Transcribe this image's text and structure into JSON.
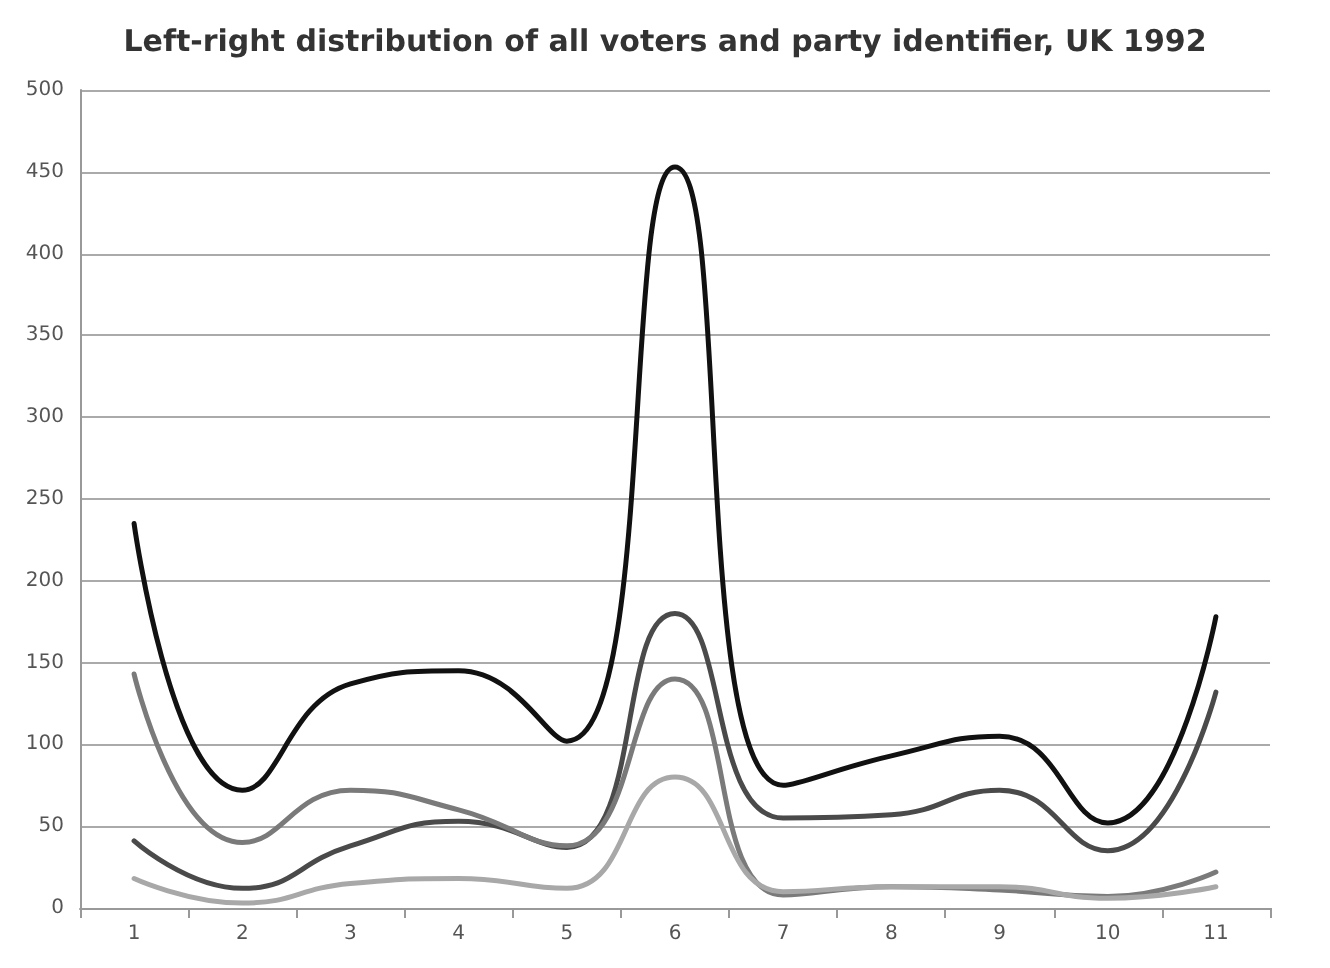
{
  "chart_data": {
    "type": "line",
    "title": "Left-right distribution of all voters and party identifier, UK 1992",
    "categories": [
      "1",
      "2",
      "3",
      "4",
      "5",
      "6",
      "7",
      "8",
      "9",
      "10",
      "11"
    ],
    "series": [
      {
        "color": "#111111",
        "values": [
          235,
          72,
          137,
          145,
          102,
          453,
          75,
          93,
          105,
          52,
          178
        ]
      },
      {
        "color": "#4a4a4a",
        "values": [
          41,
          12,
          38,
          53,
          37,
          180,
          55,
          57,
          72,
          35,
          132
        ]
      },
      {
        "color": "#7a7a7a",
        "values": [
          143,
          40,
          72,
          60,
          38,
          140,
          8,
          13,
          11,
          7,
          22
        ]
      },
      {
        "color": "#a8a8a8",
        "values": [
          18,
          3,
          15,
          18,
          12,
          80,
          10,
          13,
          13,
          6,
          13
        ]
      }
    ],
    "ylim": [
      0,
      500
    ],
    "yticks": [
      0,
      50,
      100,
      150,
      200,
      250,
      300,
      350,
      400,
      450,
      500
    ],
    "grid": "y",
    "marker": "none",
    "line_style": "solid"
  }
}
